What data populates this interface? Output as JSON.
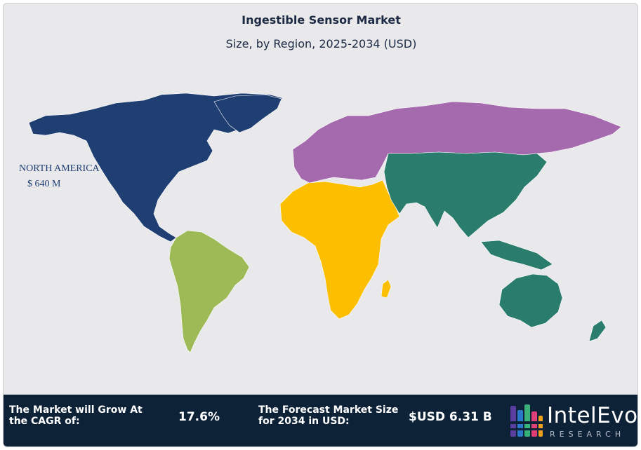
{
  "header": {
    "title": "Ingestible Sensor Market",
    "subtitle": "Size, by Region, 2025-2034 (USD)"
  },
  "map": {
    "regions": [
      {
        "name": "North America",
        "color": "#1f3f73"
      },
      {
        "name": "South America",
        "color": "#9dba56"
      },
      {
        "name": "Europe",
        "color": "#a56aae"
      },
      {
        "name": "Middle East & Africa",
        "color": "#fbbf00"
      },
      {
        "name": "Asia Pacific",
        "color": "#2a7c6c"
      }
    ],
    "label": {
      "region": "NORTH AMERICA",
      "value": "$ 640 M"
    }
  },
  "footer": {
    "cagr_label": "The Market will Grow At the CAGR of:",
    "cagr_value": "17.6%",
    "forecast_label": "The Forecast Market Size for 2034 in USD:",
    "forecast_value": "$USD 6.31 B"
  },
  "logo": {
    "name": "IntelEvo",
    "sub": "RESEARCH"
  }
}
